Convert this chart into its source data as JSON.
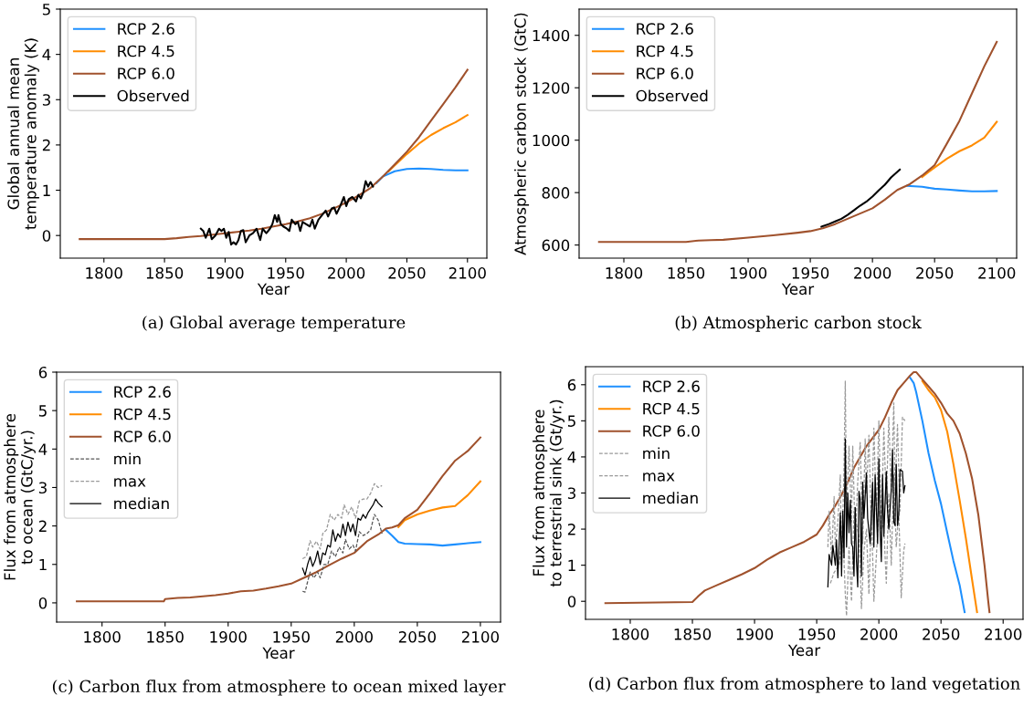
{
  "chart_data": [
    {
      "type": "line",
      "xlabel": "Year",
      "ylabel": "Global annual mean\ntemperature anomaly (K)",
      "xlim": [
        1764,
        2116
      ],
      "ylim": [
        -0.5,
        5
      ],
      "xticks": [
        1800,
        1850,
        1900,
        1950,
        2000,
        2050,
        2100
      ],
      "yticks": [
        0,
        1,
        2,
        3,
        4,
        5
      ],
      "legend": "top left",
      "grid": false,
      "annotations": [
        "(a) Global average temperature"
      ],
      "series": [
        {
          "name": "RCP 2.6",
          "color": "#1e90ff",
          "line_style": "solid",
          "x": [
            2025,
            2030,
            2040,
            2050,
            2060,
            2070,
            2080,
            2090,
            2100
          ],
          "values": [
            1.16,
            1.3,
            1.42,
            1.47,
            1.48,
            1.47,
            1.45,
            1.44,
            1.44
          ]
        },
        {
          "name": "RCP 4.5",
          "color": "#ff8c00",
          "line_style": "solid",
          "x": [
            2035,
            2040,
            2050,
            2060,
            2070,
            2080,
            2090,
            2100
          ],
          "values": [
            1.42,
            1.55,
            1.8,
            2.03,
            2.22,
            2.37,
            2.5,
            2.66
          ]
        },
        {
          "name": "RCP 6.0",
          "color": "#a0522d",
          "line_style": "solid",
          "x": [
            1780,
            1850,
            1860,
            1870,
            1880,
            1890,
            1900,
            1910,
            1920,
            1930,
            1940,
            1950,
            1960,
            1970,
            1980,
            1990,
            2000,
            2010,
            2020,
            2030,
            2040,
            2050,
            2060,
            2070,
            2080,
            2090,
            2100
          ],
          "values": [
            -0.08,
            -0.08,
            -0.06,
            -0.03,
            -0.01,
            0.02,
            0.05,
            0.08,
            0.11,
            0.15,
            0.2,
            0.25,
            0.31,
            0.38,
            0.48,
            0.6,
            0.73,
            0.88,
            1.05,
            1.3,
            1.57,
            1.85,
            2.17,
            2.54,
            2.9,
            3.27,
            3.66
          ]
        },
        {
          "name": "Observed",
          "color": "#000000",
          "line_style": "solid",
          "x": [
            1880,
            1882,
            1884,
            1887,
            1889,
            1892,
            1895,
            1897,
            1899,
            1901,
            1903,
            1905,
            1907,
            1909,
            1911,
            1913,
            1915,
            1917,
            1920,
            1923,
            1926,
            1929,
            1931,
            1934,
            1937,
            1939,
            1941,
            1943,
            1944,
            1946,
            1948,
            1951,
            1953,
            1955,
            1958,
            1960,
            1962,
            1964,
            1967,
            1970,
            1972,
            1974,
            1977,
            1980,
            1983,
            1985,
            1988,
            1990,
            1992,
            1995,
            1998,
            2000,
            2002,
            2005,
            2008,
            2010,
            2012,
            2014,
            2016,
            2018,
            2020,
            2022
          ],
          "values": [
            0.15,
            0.1,
            -0.05,
            0.15,
            -0.08,
            0.0,
            0.15,
            0.1,
            0.15,
            -0.05,
            0.08,
            -0.2,
            -0.15,
            -0.2,
            -0.1,
            0.1,
            0.12,
            -0.15,
            0.0,
            0.05,
            0.15,
            -0.1,
            0.15,
            0.05,
            0.15,
            0.25,
            0.45,
            0.3,
            0.45,
            0.25,
            0.2,
            0.15,
            0.1,
            0.35,
            0.25,
            0.3,
            0.1,
            0.3,
            0.25,
            0.2,
            0.35,
            0.15,
            0.35,
            0.45,
            0.55,
            0.42,
            0.6,
            0.62,
            0.48,
            0.65,
            0.85,
            0.65,
            0.8,
            0.85,
            0.75,
            0.9,
            0.82,
            0.95,
            1.2,
            1.08,
            1.18,
            1.08
          ]
        }
      ]
    },
    {
      "type": "line",
      "xlabel": "Year",
      "ylabel": "Atmospheric carbon stock (GtC)",
      "xlim": [
        1764,
        2116
      ],
      "ylim": [
        550,
        1500
      ],
      "xticks": [
        1800,
        1850,
        1900,
        1950,
        2000,
        2050,
        2100
      ],
      "yticks": [
        600,
        800,
        1000,
        1200,
        1400
      ],
      "legend": "top left",
      "grid": false,
      "annotations": [
        "(b) Atmospheric carbon stock"
      ],
      "series": [
        {
          "name": "RCP 2.6",
          "color": "#1e90ff",
          "line_style": "solid",
          "x": [
            2028,
            2040,
            2050,
            2060,
            2070,
            2080,
            2090,
            2100
          ],
          "values": [
            826,
            822,
            815,
            812,
            808,
            805,
            805,
            806
          ]
        },
        {
          "name": "RCP 4.5",
          "color": "#ff8c00",
          "line_style": "solid",
          "x": [
            2040,
            2050,
            2060,
            2070,
            2080,
            2090,
            2100
          ],
          "values": [
            860,
            896,
            930,
            958,
            980,
            1010,
            1070
          ]
        },
        {
          "name": "RCP 6.0",
          "color": "#a0522d",
          "line_style": "solid",
          "x": [
            1780,
            1850,
            1860,
            1870,
            1880,
            1900,
            1920,
            1940,
            1950,
            1960,
            1970,
            1980,
            1990,
            2000,
            2010,
            2020,
            2030,
            2040,
            2050,
            2060,
            2070,
            2080,
            2090,
            2100
          ],
          "values": [
            612,
            612,
            617,
            619,
            620,
            628,
            637,
            647,
            653,
            664,
            680,
            700,
            720,
            740,
            773,
            810,
            832,
            865,
            905,
            988,
            1074,
            1178,
            1282,
            1375
          ]
        },
        {
          "name": "Observed",
          "color": "#000000",
          "line_style": "solid",
          "x": [
            1959,
            1965,
            1970,
            1975,
            1980,
            1985,
            1990,
            1995,
            2000,
            2005,
            2010,
            2015,
            2022
          ],
          "values": [
            670,
            680,
            690,
            700,
            715,
            732,
            750,
            765,
            785,
            808,
            830,
            858,
            888
          ]
        }
      ]
    },
    {
      "type": "line",
      "xlabel": "Year",
      "ylabel": "Flux from atmosphere\nto ocean (GtC/yr.)",
      "xlim": [
        1764,
        2116
      ],
      "ylim": [
        -0.5,
        6
      ],
      "xticks": [
        1800,
        1850,
        1900,
        1950,
        2000,
        2050,
        2100
      ],
      "yticks": [
        0,
        1,
        2,
        3,
        4,
        5,
        6
      ],
      "legend": "top left",
      "grid": false,
      "annotations": [
        "(c) Carbon flux from atmosphere to ocean mixed layer"
      ],
      "series": [
        {
          "name": "RCP 2.6",
          "color": "#1e90ff",
          "line_style": "solid",
          "x": [
            2025,
            2030,
            2035,
            2040,
            2050,
            2060,
            2070,
            2080,
            2090,
            2100
          ],
          "values": [
            1.9,
            1.75,
            1.58,
            1.54,
            1.53,
            1.52,
            1.49,
            1.52,
            1.55,
            1.58
          ]
        },
        {
          "name": "RCP 4.5",
          "color": "#ff8c00",
          "line_style": "solid",
          "x": [
            2035,
            2040,
            2050,
            2060,
            2070,
            2080,
            2090,
            2100
          ],
          "values": [
            1.97,
            2.15,
            2.3,
            2.4,
            2.48,
            2.52,
            2.8,
            3.16
          ]
        },
        {
          "name": "RCP 6.0",
          "color": "#a0522d",
          "line_style": "solid",
          "x": [
            1780,
            1849,
            1850,
            1860,
            1870,
            1880,
            1890,
            1900,
            1910,
            1920,
            1930,
            1940,
            1950,
            1960,
            1970,
            1980,
            1990,
            2000,
            2010,
            2020,
            2025,
            2030,
            2035,
            2040,
            2050,
            2060,
            2070,
            2080,
            2090,
            2100
          ],
          "values": [
            0.04,
            0.04,
            0.1,
            0.13,
            0.14,
            0.17,
            0.2,
            0.24,
            0.3,
            0.32,
            0.37,
            0.43,
            0.5,
            0.65,
            0.8,
            0.98,
            1.15,
            1.3,
            1.6,
            1.8,
            1.93,
            1.96,
            2.02,
            2.2,
            2.42,
            2.85,
            3.3,
            3.7,
            3.95,
            4.3
          ]
        },
        {
          "name": "min",
          "color": "#555555",
          "line_style": "dashed",
          "x": [
            1959,
            1961,
            1963,
            1965,
            1968,
            1971,
            1973,
            1976,
            1979,
            1982,
            1985,
            1988,
            1991,
            1993,
            1996,
            1999,
            2001,
            2004,
            2007,
            2010,
            2013,
            2016,
            2019,
            2022
          ],
          "values": [
            0.3,
            0.28,
            0.55,
            0.8,
            0.65,
            0.8,
            0.65,
            1.0,
            1.0,
            1.35,
            1.2,
            1.45,
            1.3,
            1.65,
            1.4,
            1.5,
            1.35,
            1.85,
            1.75,
            1.8,
            1.9,
            2.3,
            2.15,
            1.8
          ]
        },
        {
          "name": "max",
          "color": "#999999",
          "line_style": "dashed",
          "x": [
            1959,
            1962,
            1965,
            1967,
            1970,
            1973,
            1975,
            1978,
            1981,
            1984,
            1987,
            1990,
            1992,
            1995,
            1998,
            2001,
            2004,
            2007,
            2010,
            2013,
            2016,
            2019,
            2022
          ],
          "values": [
            1.15,
            1.2,
            1.62,
            1.45,
            1.6,
            1.4,
            1.8,
            1.9,
            2.3,
            2.15,
            2.3,
            2.2,
            2.55,
            2.3,
            2.5,
            2.2,
            2.65,
            2.7,
            2.7,
            2.85,
            3.1,
            3.0,
            3.05
          ]
        },
        {
          "name": "median",
          "color": "#000000",
          "line_style": "solid",
          "x": [
            1959,
            1961,
            1963,
            1965,
            1967,
            1969,
            1971,
            1973,
            1975,
            1977,
            1979,
            1981,
            1983,
            1985,
            1987,
            1989,
            1991,
            1993,
            1995,
            1997,
            1999,
            2001,
            2003,
            2005,
            2007,
            2009,
            2011,
            2013,
            2015,
            2017,
            2019,
            2022
          ],
          "values": [
            0.9,
            0.72,
            1.0,
            1.2,
            0.95,
            1.1,
            1.35,
            1.0,
            1.3,
            1.25,
            1.5,
            1.45,
            1.9,
            1.6,
            1.8,
            1.7,
            2.05,
            1.75,
            2.1,
            1.85,
            2.05,
            1.75,
            2.2,
            2.15,
            2.3,
            2.2,
            2.35,
            2.45,
            2.55,
            2.7,
            2.6,
            2.5
          ]
        }
      ]
    },
    {
      "type": "line",
      "xlabel": "Year",
      "ylabel": "Flux from atmosphere\nto terrestrial sink (Gt/yr.)",
      "xlim": [
        1764,
        2116
      ],
      "ylim": [
        -0.5,
        6.5
      ],
      "xticks": [
        1800,
        1850,
        1900,
        1950,
        2000,
        2050,
        2100
      ],
      "yticks": [
        0,
        1,
        2,
        3,
        4,
        5,
        6
      ],
      "legend": "top left",
      "grid": false,
      "annotations": [
        "(d) Carbon flux from atmosphere to land vegetation"
      ],
      "series": [
        {
          "name": "RCP 2.6",
          "color": "#1e90ff",
          "line_style": "solid",
          "x": [
            2025,
            2028,
            2030,
            2035,
            2040,
            2045,
            2050,
            2055,
            2060,
            2065,
            2069
          ],
          "values": [
            6.2,
            6.05,
            5.8,
            5.0,
            4.1,
            3.35,
            2.7,
            1.9,
            1.12,
            0.45,
            -0.3
          ]
        },
        {
          "name": "RCP 4.5",
          "color": "#ff8c00",
          "line_style": "solid",
          "x": [
            2035,
            2040,
            2045,
            2050,
            2055,
            2060,
            2065,
            2070,
            2075,
            2079
          ],
          "values": [
            6.1,
            5.85,
            5.65,
            5.3,
            4.7,
            3.8,
            2.8,
            1.75,
            0.6,
            -0.3
          ]
        },
        {
          "name": "RCP 6.0",
          "color": "#a0522d",
          "line_style": "solid",
          "x": [
            1780,
            1850,
            1855,
            1860,
            1870,
            1880,
            1890,
            1900,
            1910,
            1915,
            1920,
            1930,
            1940,
            1950,
            1955,
            1960,
            1965,
            1970,
            1975,
            1980,
            1990,
            2000,
            2005,
            2010,
            2015,
            2020,
            2025,
            2028,
            2030,
            2035,
            2040,
            2045,
            2050,
            2055,
            2060,
            2065,
            2070,
            2075,
            2080,
            2085,
            2088,
            2089
          ],
          "values": [
            -0.05,
            -0.02,
            0.15,
            0.3,
            0.45,
            0.6,
            0.75,
            0.92,
            1.15,
            1.25,
            1.35,
            1.5,
            1.65,
            1.85,
            2.1,
            2.4,
            2.65,
            2.95,
            3.3,
            3.7,
            4.3,
            4.75,
            5.1,
            5.5,
            5.85,
            6.05,
            6.25,
            6.35,
            6.35,
            6.15,
            5.95,
            5.75,
            5.5,
            5.2,
            5.0,
            4.65,
            4.1,
            3.4,
            2.4,
            1.0,
            0.0,
            -0.3
          ]
        },
        {
          "name": "min",
          "color": "#999999",
          "line_style": "dashed",
          "x": [
            1961,
            1964,
            1968,
            1971,
            1973,
            1974,
            1976,
            1978,
            1980,
            1984,
            1986,
            1988,
            1990,
            1992,
            1994,
            1996,
            2000,
            2004,
            2006,
            2008,
            2010,
            2012,
            2014,
            2016,
            2018,
            2020,
            2021
          ],
          "values": [
            0.5,
            0.8,
            1.0,
            2.0,
            0.2,
            -0.4,
            1.5,
            0.0,
            2.5,
            1.8,
            -0.2,
            1.4,
            2.0,
            0.2,
            2.5,
            0.0,
            2.5,
            2.0,
            0.5,
            3.0,
            1.0,
            3.5,
            1.5,
            2.5,
            0.1,
            1.4,
            1.6
          ]
        },
        {
          "name": "max",
          "color": "#999999",
          "line_style": "dashed",
          "x": [
            1959,
            1960,
            1962,
            1964,
            1965,
            1967,
            1969,
            1970,
            1972,
            1973,
            1974,
            1976,
            1978,
            1979,
            1981,
            1983,
            1985,
            1987,
            1989,
            1990,
            1992,
            1994,
            1996,
            1998,
            2000,
            2002,
            2004,
            2006,
            2008,
            2010,
            2012,
            2013,
            2015,
            2017,
            2019,
            2021
          ],
          "values": [
            1.5,
            2.5,
            1.2,
            2.9,
            1.5,
            2.2,
            3.5,
            1.0,
            3.7,
            6.1,
            2.5,
            4.3,
            2.2,
            4.3,
            1.7,
            3.3,
            4.4,
            1.6,
            4.5,
            3.0,
            4.6,
            2.0,
            4.8,
            2.4,
            5.0,
            2.0,
            4.8,
            2.7,
            5.1,
            3.0,
            5.5,
            3.0,
            4.9,
            2.5,
            5.1,
            5.0
          ]
        },
        {
          "name": "median",
          "color": "#000000",
          "line_style": "solid",
          "x": [
            1959,
            1960,
            1962,
            1963,
            1965,
            1966,
            1967,
            1969,
            1970,
            1971,
            1972,
            1973,
            1974,
            1975,
            1976,
            1977,
            1978,
            1979,
            1980,
            1981,
            1982,
            1983,
            1984,
            1985,
            1986,
            1987,
            1988,
            1990,
            1991,
            1993,
            1995,
            1996,
            1997,
            1999,
            2000,
            2001,
            2002,
            2003,
            2004,
            2006,
            2007,
            2008,
            2010,
            2011,
            2012,
            2013,
            2014,
            2015,
            2016,
            2017,
            2019,
            2020,
            2021
          ],
          "values": [
            0.4,
            1.3,
            1.0,
            1.55,
            1.0,
            1.7,
            0.65,
            2.45,
            0.7,
            2.5,
            1.2,
            4.5,
            1.5,
            3.0,
            1.9,
            2.8,
            1.6,
            1.5,
            0.7,
            2.6,
            1.1,
            0.4,
            3.05,
            2.8,
            0.7,
            3.3,
            2.3,
            3.55,
            2.3,
            1.6,
            3.3,
            1.5,
            3.5,
            1.6,
            3.95,
            2.0,
            1.1,
            3.5,
            1.8,
            3.6,
            2.5,
            2.0,
            3.1,
            4.2,
            2.2,
            2.1,
            3.8,
            2.1,
            2.4,
            3.65,
            3.6,
            3.0,
            3.2
          ]
        }
      ]
    }
  ]
}
